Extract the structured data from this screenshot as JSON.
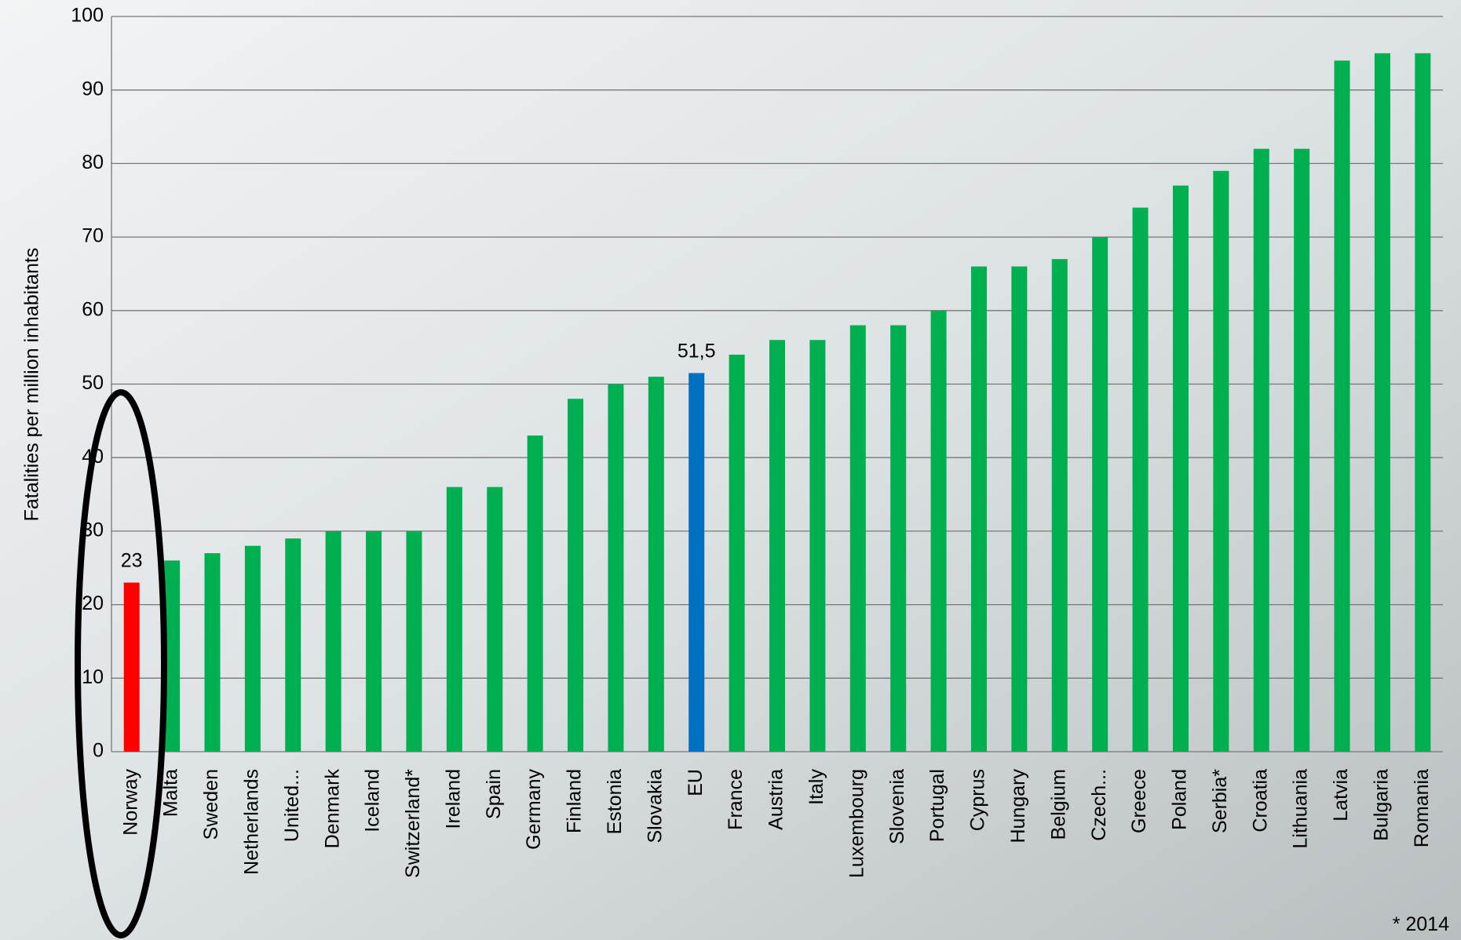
{
  "chart_data": {
    "type": "bar",
    "y_label": "Fatalities per million inhabitants",
    "categories": [
      "Norway",
      "Malta",
      "Sweden",
      "Netherlands",
      "United...",
      "Denmark",
      "Iceland",
      "Switzerland*",
      "Ireland",
      "Spain",
      "Germany",
      "Finland",
      "Estonia",
      "Slovakia",
      "EU",
      "France",
      "Austria",
      "Italy",
      "Luxembourg",
      "Slovenia",
      "Portugal",
      "Cyprus",
      "Hungary",
      "Belgium",
      "Czech...",
      "Greece",
      "Poland",
      "Serbia*",
      "Croatia",
      "Lithuania",
      "Latvia",
      "Bulgaria",
      "Romania"
    ],
    "values": [
      23,
      26,
      27,
      28,
      29,
      30,
      30,
      30,
      36,
      36,
      43,
      48,
      50,
      51,
      51.5,
      54,
      56,
      56,
      58,
      58,
      60,
      66,
      66,
      67,
      70,
      74,
      77,
      79,
      82,
      82,
      94,
      95,
      95
    ],
    "value_labels": [
      "23",
      null,
      null,
      null,
      null,
      null,
      null,
      null,
      null,
      null,
      null,
      null,
      null,
      null,
      "51,5",
      null,
      null,
      null,
      null,
      null,
      null,
      null,
      null,
      null,
      null,
      null,
      null,
      null,
      null,
      null,
      null,
      null,
      null
    ],
    "colors": [
      "#ff0000",
      "#00b050",
      "#00b050",
      "#00b050",
      "#00b050",
      "#00b050",
      "#00b050",
      "#00b050",
      "#00b050",
      "#00b050",
      "#00b050",
      "#00b050",
      "#00b050",
      "#00b050",
      "#0070c0",
      "#00b050",
      "#00b050",
      "#00b050",
      "#00b050",
      "#00b050",
      "#00b050",
      "#00b050",
      "#00b050",
      "#00b050",
      "#00b050",
      "#00b050",
      "#00b050",
      "#00b050",
      "#00b050",
      "#00b050",
      "#00b050",
      "#00b050",
      "#00b050"
    ],
    "ylim": [
      0,
      100
    ],
    "yticks": [
      0,
      10,
      20,
      30,
      40,
      50,
      60,
      70,
      80,
      90,
      100
    ],
    "grid": true,
    "annotation": "* 2014"
  }
}
